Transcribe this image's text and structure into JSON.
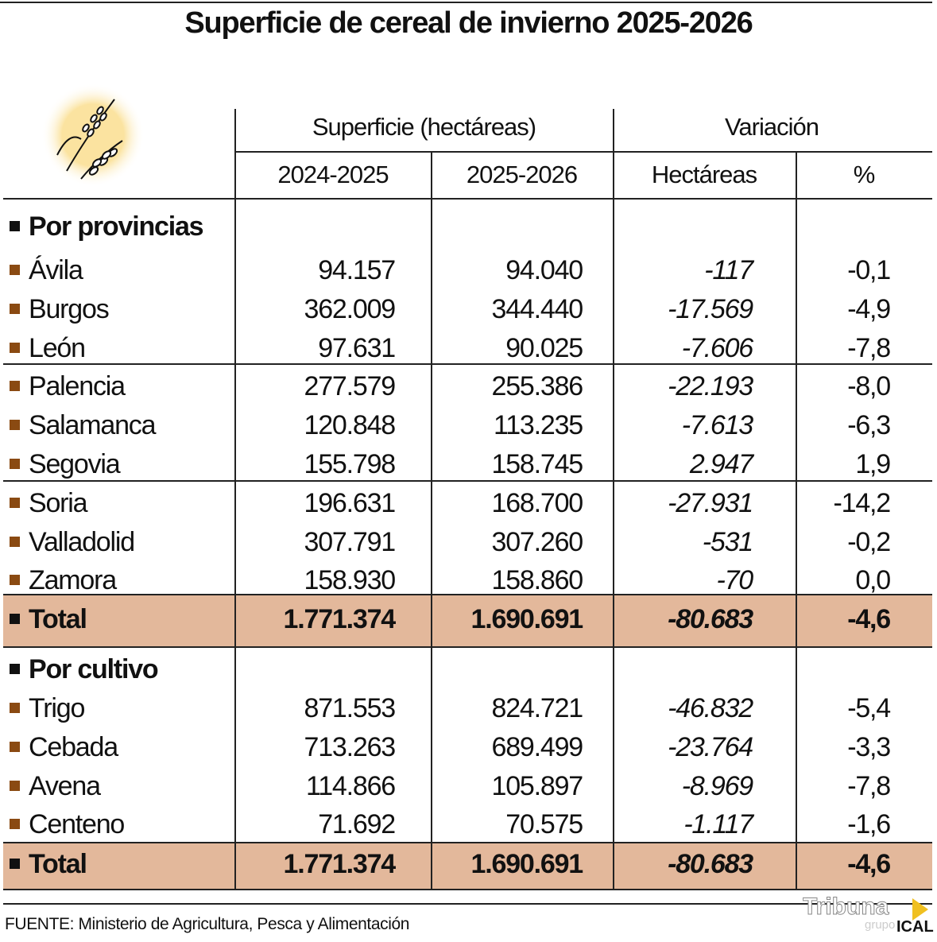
{
  "title": "Superficie de cereal de invierno 2025-2026",
  "colors": {
    "bullet": "#8a4a12",
    "total_band": "#e3b89b",
    "icon_circle": "#fbe6a8"
  },
  "icon": "wheat-icon",
  "header": {
    "group1": "Superficie (hectáreas)",
    "group2": "Variación",
    "cols": [
      "2024-2025",
      "2025-2026",
      "Hectáreas",
      "%"
    ]
  },
  "chart_data": {
    "type": "table",
    "title": "Superficie de cereal de invierno 2025-2026",
    "columns": [
      "2024-2025",
      "2025-2026",
      "Hectáreas",
      "%"
    ],
    "sections": [
      {
        "label": "Por provincias",
        "rows": [
          {
            "label": "Ávila",
            "values": [
              "94.157",
              "94.040",
              "-117",
              "-0,1"
            ]
          },
          {
            "label": "Burgos",
            "values": [
              "362.009",
              "344.440",
              "-17.569",
              "-4,9"
            ]
          },
          {
            "label": "León",
            "values": [
              "97.631",
              "90.025",
              "-7.606",
              "-7,8"
            ]
          },
          {
            "label": "Palencia",
            "values": [
              "277.579",
              "255.386",
              "-22.193",
              "-8,0"
            ]
          },
          {
            "label": "Salamanca",
            "values": [
              "120.848",
              "113.235",
              "-7.613",
              "-6,3"
            ]
          },
          {
            "label": "Segovia",
            "values": [
              "155.798",
              "158.745",
              "2.947",
              "1,9"
            ]
          },
          {
            "label": "Soria",
            "values": [
              "196.631",
              "168.700",
              "-27.931",
              "-14,2"
            ]
          },
          {
            "label": "Valladolid",
            "values": [
              "307.791",
              "307.260",
              "-531",
              "-0,2"
            ]
          },
          {
            "label": "Zamora",
            "values": [
              "158.930",
              "158.860",
              "-70",
              "0,0"
            ]
          }
        ],
        "total": {
          "label": "Total",
          "values": [
            "1.771.374",
            "1.690.691",
            "-80.683",
            "-4,6"
          ]
        }
      },
      {
        "label": "Por cultivo",
        "rows": [
          {
            "label": "Trigo",
            "values": [
              "871.553",
              "824.721",
              "-46.832",
              "-5,4"
            ]
          },
          {
            "label": "Cebada",
            "values": [
              "713.263",
              "689.499",
              "-23.764",
              "-3,3"
            ]
          },
          {
            "label": "Avena",
            "values": [
              "114.866",
              "105.897",
              "-8.969",
              "-7,8"
            ]
          },
          {
            "label": "Centeno",
            "values": [
              "71.692",
              "70.575",
              "-1.117",
              "-1,6"
            ]
          }
        ],
        "total": {
          "label": "Total",
          "values": [
            "1.771.374",
            "1.690.691",
            "-80.683",
            "-4,6"
          ]
        }
      }
    ]
  },
  "source": "FUENTE: Ministerio de Agricultura, Pesca y Alimentación",
  "logo": {
    "text": "Tribuna grupo ICAL"
  }
}
